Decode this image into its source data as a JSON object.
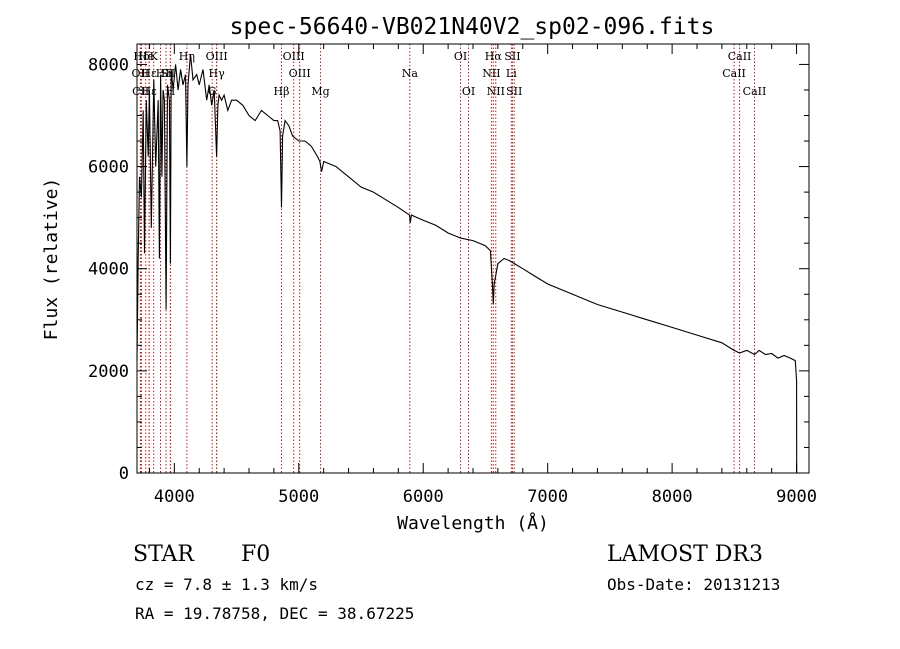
{
  "chart_data": {
    "type": "line",
    "title": "spec-56640-VB021N40V2_sp02-096.fits",
    "xlabel": "Wavelength (Å)",
    "ylabel": "Flux (relative)",
    "xlim": [
      3700,
      9100
    ],
    "ylim": [
      0,
      8400
    ],
    "x_ticks": [
      4000,
      5000,
      6000,
      7000,
      8000,
      9000
    ],
    "x_tick_labels": [
      "4000",
      "5000",
      "6000",
      "7000",
      "8000",
      "9000"
    ],
    "y_ticks": [
      0,
      2000,
      4000,
      6000,
      8000
    ],
    "y_tick_labels": [
      "0",
      "2000",
      "4000",
      "6000",
      "8000"
    ],
    "grid": false,
    "series": [
      {
        "name": "flux",
        "x": [
          3700,
          3710,
          3720,
          3735,
          3750,
          3760,
          3775,
          3790,
          3800,
          3815,
          3835,
          3850,
          3870,
          3880,
          3890,
          3900,
          3910,
          3920,
          3934,
          3945,
          3960,
          3968,
          3975,
          3990,
          4010,
          4030,
          4050,
          4070,
          4090,
          4101,
          4110,
          4130,
          4150,
          4180,
          4200,
          4230,
          4260,
          4280,
          4300,
          4320,
          4340,
          4350,
          4360,
          4380,
          4400,
          4430,
          4460,
          4500,
          4550,
          4600,
          4650,
          4700,
          4750,
          4800,
          4830,
          4850,
          4861,
          4870,
          4890,
          4920,
          4950,
          5000,
          5050,
          5100,
          5150,
          5170,
          5183,
          5200,
          5250,
          5300,
          5350,
          5400,
          5500,
          5600,
          5700,
          5800,
          5890,
          5896,
          5905,
          6000,
          6100,
          6200,
          6300,
          6400,
          6500,
          6540,
          6556,
          6563,
          6570,
          6600,
          6650,
          6700,
          6800,
          6900,
          7000,
          7200,
          7400,
          7600,
          7800,
          8000,
          8200,
          8400,
          8498,
          8542,
          8600,
          8662,
          8700,
          8750,
          8800,
          8850,
          8900,
          8950,
          8990,
          9000,
          9001
        ],
        "values": [
          2200,
          4200,
          5800,
          5400,
          7100,
          4300,
          7300,
          6200,
          7500,
          4800,
          7700,
          6000,
          7300,
          4200,
          7800,
          5800,
          7500,
          7300,
          3200,
          7600,
          7300,
          4100,
          7900,
          7500,
          8000,
          7500,
          7900,
          7600,
          7800,
          6000,
          7600,
          8200,
          7700,
          7800,
          7600,
          7900,
          7300,
          7600,
          7200,
          7500,
          6200,
          7200,
          7400,
          7300,
          7400,
          7100,
          7300,
          7300,
          7200,
          7000,
          6900,
          7100,
          7000,
          6900,
          6900,
          6700,
          5200,
          6600,
          6900,
          6800,
          6600,
          6500,
          6500,
          6400,
          6200,
          6100,
          5900,
          6100,
          6050,
          6000,
          5900,
          5800,
          5600,
          5500,
          5350,
          5200,
          5050,
          4900,
          5050,
          4950,
          4850,
          4700,
          4600,
          4550,
          4450,
          4350,
          3700,
          3300,
          3700,
          4100,
          4200,
          4150,
          4000,
          3850,
          3700,
          3500,
          3300,
          3150,
          3000,
          2850,
          2700,
          2550,
          2400,
          2350,
          2400,
          2320,
          2400,
          2320,
          2340,
          2250,
          2300,
          2250,
          2200,
          1800,
          0
        ]
      }
    ],
    "annotations": [
      "STAR",
      "F0",
      "cz = 7.8 ± 1.3 km/s",
      "RA =  19.78758, DEC =  38.67225",
      "LAMOST DR3",
      "Obs-Date: 20131213"
    ],
    "spectral_lines": [
      {
        "label": "Hδ",
        "wavelength": 3736,
        "row": 0
      },
      {
        "label": "OII",
        "wavelength": 3727,
        "row": 1
      },
      {
        "label": "CII",
        "wavelength": 3730,
        "row": 2
      },
      {
        "label": "Hε",
        "wavelength": 3770,
        "row": 0
      },
      {
        "label": "Hε",
        "wavelength": 3797,
        "row": 1
      },
      {
        "label": "Hε",
        "wavelength": 3798,
        "row": 2
      },
      {
        "label": "K",
        "wavelength": 3834,
        "row": 0
      },
      {
        "label": "H",
        "wavelength": 3889,
        "row": 1
      },
      {
        "label": "Si",
        "wavelength": 3933,
        "row": 1
      },
      {
        "label": "H",
        "wavelength": 3968,
        "row": 1
      },
      {
        "label": "H",
        "wavelength": 3970,
        "row": 2
      },
      {
        "label": "Hη",
        "wavelength": 4101,
        "row": 0
      },
      {
        "label": "OIII",
        "wavelength": 4340,
        "row": 0
      },
      {
        "label": "Hγ",
        "wavelength": 4340,
        "row": 1
      },
      {
        "label": "G",
        "wavelength": 4304,
        "row": 2
      },
      {
        "label": "Hβ",
        "wavelength": 4861,
        "row": 2
      },
      {
        "label": "OIII",
        "wavelength": 4959,
        "row": 0
      },
      {
        "label": "OIII",
        "wavelength": 5007,
        "row": 1
      },
      {
        "label": "Mg",
        "wavelength": 5175,
        "row": 2
      },
      {
        "label": "Na",
        "wavelength": 5892,
        "row": 1
      },
      {
        "label": "OI",
        "wavelength": 6300,
        "row": 0
      },
      {
        "label": "OI",
        "wavelength": 6364,
        "row": 2
      },
      {
        "label": "Hα",
        "wavelength": 6563,
        "row": 0
      },
      {
        "label": "NII",
        "wavelength": 6548,
        "row": 1
      },
      {
        "label": "NII",
        "wavelength": 6583,
        "row": 2
      },
      {
        "label": "SII",
        "wavelength": 6717,
        "row": 0
      },
      {
        "label": "Li",
        "wavelength": 6708,
        "row": 1
      },
      {
        "label": "SII",
        "wavelength": 6731,
        "row": 2
      },
      {
        "label": "CaII",
        "wavelength": 8542,
        "row": 0
      },
      {
        "label": "CaII",
        "wavelength": 8498,
        "row": 1
      },
      {
        "label": "CaII",
        "wavelength": 8662,
        "row": 2
      }
    ],
    "line_color": "#000000",
    "marker_line_color": "#b22222"
  }
}
